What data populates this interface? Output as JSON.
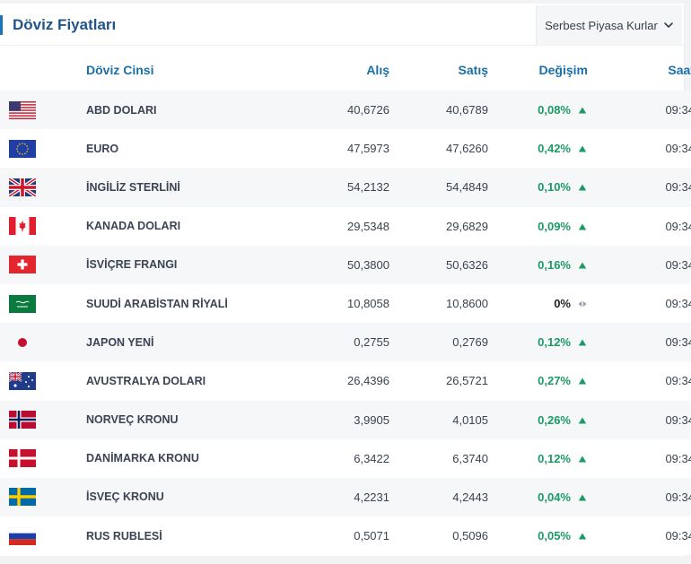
{
  "header": {
    "title": "Döviz Fiyatları",
    "market_select": "Serbest Piyasa Kurlar"
  },
  "columns": {
    "name": "Döviz Cinsi",
    "buy": "Alış",
    "sell": "Satış",
    "change": "Değişim",
    "time": "Saat"
  },
  "rows": [
    {
      "flag": "us-flag-icon",
      "name": "ABD DOLARI",
      "buy": "40,6726",
      "sell": "40,6789",
      "change": "0,08%",
      "trend": "up",
      "time": "09:34"
    },
    {
      "flag": "eu-flag-icon",
      "name": "EURO",
      "buy": "47,5973",
      "sell": "47,6260",
      "change": "0,42%",
      "trend": "up",
      "time": "09:34"
    },
    {
      "flag": "uk-flag-icon",
      "name": "İNGİLİZ STERLİNİ",
      "buy": "54,2132",
      "sell": "54,4849",
      "change": "0,10%",
      "trend": "up",
      "time": "09:34"
    },
    {
      "flag": "canada-flag-icon",
      "name": "KANADA DOLARI",
      "buy": "29,5348",
      "sell": "29,6829",
      "change": "0,09%",
      "trend": "up",
      "time": "09:34"
    },
    {
      "flag": "switzerland-flag-icon",
      "name": "İSVİÇRE FRANGI",
      "buy": "50,3800",
      "sell": "50,6326",
      "change": "0,16%",
      "trend": "up",
      "time": "09:34"
    },
    {
      "flag": "saudi-arabia-flag-icon",
      "name": "SUUDİ ARABİSTAN RİYALİ",
      "buy": "10,8058",
      "sell": "10,8600",
      "change": "0%",
      "trend": "flat",
      "time": "09:34"
    },
    {
      "flag": "japan-flag-icon",
      "name": "JAPON YENİ",
      "buy": "0,2755",
      "sell": "0,2769",
      "change": "0,12%",
      "trend": "up",
      "time": "09:34"
    },
    {
      "flag": "australia-flag-icon",
      "name": "AVUSTRALYA DOLARI",
      "buy": "26,4396",
      "sell": "26,5721",
      "change": "0,27%",
      "trend": "up",
      "time": "09:34"
    },
    {
      "flag": "norway-flag-icon",
      "name": "NORVEÇ KRONU",
      "buy": "3,9905",
      "sell": "4,0105",
      "change": "0,26%",
      "trend": "up",
      "time": "09:34"
    },
    {
      "flag": "denmark-flag-icon",
      "name": "DANİMARKA KRONU",
      "buy": "6,3422",
      "sell": "6,3740",
      "change": "0,12%",
      "trend": "up",
      "time": "09:34"
    },
    {
      "flag": "sweden-flag-icon",
      "name": "İSVEÇ KRONU",
      "buy": "4,2231",
      "sell": "4,2443",
      "change": "0,04%",
      "trend": "up",
      "time": "09:34"
    },
    {
      "flag": "russia-flag-icon",
      "name": "RUS RUBLESİ",
      "buy": "0,5071",
      "sell": "0,5096",
      "change": "0,05%",
      "trend": "up",
      "time": "09:34"
    }
  ],
  "colors": {
    "title": "#22548a",
    "accent": "#1a74b8",
    "header_text": "#1a6fa9",
    "positive": "#1c9a66",
    "neutral_arrow": "#9aa0a8"
  }
}
